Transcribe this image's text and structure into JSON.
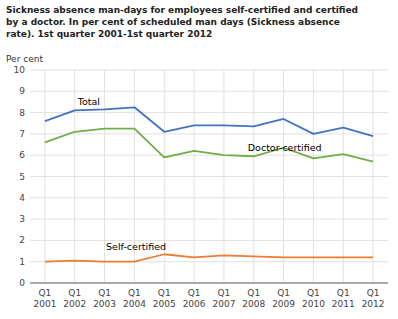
{
  "chart_data": {
    "type": "line",
    "title": "Sickness absence man-days for employees self-certified and certified\nby a doctor. In per cent of scheduled man days (Sickness absence\nrate). 1st quarter 2001-1st quarter 2012",
    "ylabel": "Per cent",
    "categories": [
      "Q1\n2001",
      "Q1\n2002",
      "Q1\n2003",
      "Q1\n2004",
      "Q1\n2005",
      "Q1\n2006",
      "Q1\n2007",
      "Q1\n2008",
      "Q1\n2009",
      "Q1\n2010",
      "Q1\n2011",
      "Q1\n2012"
    ],
    "series": [
      {
        "color": "#4472c4",
        "values": [
          7.6,
          8.1,
          8.15,
          8.25,
          7.1,
          7.4,
          7.4,
          7.35,
          7.7,
          7.0,
          7.3,
          6.9
        ]
      },
      {
        "color": "#70ad47",
        "values": [
          6.6,
          7.1,
          7.25,
          7.25,
          5.9,
          6.2,
          6.0,
          5.95,
          6.35,
          5.85,
          6.05,
          5.7
        ]
      },
      {
        "color": "#ed7d31",
        "values": [
          1.0,
          1.05,
          1.0,
          1.0,
          1.35,
          1.2,
          1.3,
          1.25,
          1.2,
          1.2,
          1.2,
          1.2
        ]
      }
    ],
    "annotations": [
      {
        "text": "Total",
        "x": 1.1,
        "y": 8.35
      },
      {
        "text": "Doctor-certified",
        "x": 6.8,
        "y": 6.2
      },
      {
        "text": "Self-certified",
        "x": 2.05,
        "y": 1.55
      }
    ],
    "ylim": [
      0,
      10
    ],
    "yticks": [
      0,
      1,
      2,
      3,
      4,
      5,
      6,
      7,
      8,
      9,
      10
    ],
    "grid": true
  }
}
